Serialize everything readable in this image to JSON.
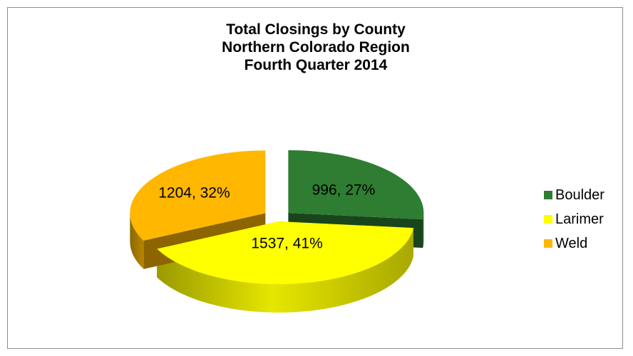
{
  "chart_data": {
    "type": "pie",
    "title_lines": [
      "Total Closings by County",
      "Northern Colorado Region",
      "Fourth Quarter 2014"
    ],
    "categories": [
      "Boulder",
      "Larimer",
      "Weld"
    ],
    "values": [
      996,
      1537,
      1204
    ],
    "percents": [
      27,
      41,
      32
    ],
    "data_labels": [
      "996, 27%",
      "1537, 41%",
      "1204, 32%"
    ],
    "colors": [
      "#2E7D32",
      "#FFFF00",
      "#FFB700"
    ],
    "legend_position": "right",
    "style": "3d-exploded"
  }
}
